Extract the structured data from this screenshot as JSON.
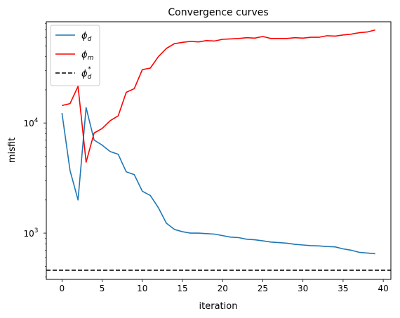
{
  "chart_data": {
    "type": "line",
    "title": "Convergence curves",
    "xlabel": "iteration",
    "ylabel": "misfit",
    "xlim": [
      -1.95,
      40.95
    ],
    "ylim": [
      380,
      83000
    ],
    "yscale": "log",
    "grid": false,
    "legend_position": "top-left",
    "x_ticks": [
      0,
      5,
      10,
      15,
      20,
      25,
      30,
      35,
      40
    ],
    "x_tick_labels": [
      "0",
      "5",
      "10",
      "15",
      "20",
      "25",
      "30",
      "35",
      "40"
    ],
    "y_ticks": [
      1000,
      10000
    ],
    "y_tick_labels": [
      {
        "base": "10",
        "exp": "3"
      },
      {
        "base": "10",
        "exp": "4"
      }
    ],
    "y_minor_ticks": [
      400,
      500,
      600,
      700,
      800,
      900,
      2000,
      3000,
      4000,
      5000,
      6000,
      7000,
      8000,
      9000,
      20000,
      30000,
      40000,
      50000,
      60000,
      70000,
      80000
    ],
    "x": [
      0,
      1,
      2,
      3,
      4,
      5,
      6,
      7,
      8,
      9,
      10,
      11,
      12,
      13,
      14,
      15,
      16,
      17,
      18,
      19,
      20,
      21,
      22,
      23,
      24,
      25,
      26,
      27,
      28,
      29,
      30,
      31,
      32,
      33,
      34,
      35,
      36,
      37,
      38,
      39
    ],
    "series": [
      {
        "name": "φd",
        "legend_base": "ϕ",
        "legend_sub": "d",
        "color": "#1f77b4",
        "style": "solid",
        "values": [
          12300,
          3700,
          2000,
          13800,
          7000,
          6300,
          5500,
          5200,
          3600,
          3400,
          2400,
          2200,
          1700,
          1230,
          1080,
          1030,
          1000,
          1000,
          990,
          980,
          950,
          920,
          910,
          880,
          870,
          850,
          830,
          820,
          810,
          790,
          780,
          770,
          765,
          755,
          750,
          720,
          700,
          670,
          660,
          650
        ]
      },
      {
        "name": "φm",
        "legend_base": "ϕ",
        "legend_sub": "m",
        "color": "#ff0000",
        "style": "solid",
        "values": [
          14400,
          15000,
          21500,
          4400,
          8100,
          8900,
          10500,
          11600,
          19000,
          20500,
          30500,
          31500,
          40000,
          47500,
          52500,
          54000,
          55000,
          54500,
          56000,
          55500,
          57500,
          58000,
          58500,
          59500,
          59000,
          61000,
          58500,
          58500,
          58500,
          59500,
          59000,
          60000,
          60000,
          62000,
          61500,
          63000,
          64000,
          66000,
          67000,
          70000
        ]
      },
      {
        "name": "φd*",
        "legend_base": "ϕ",
        "legend_sub": "d",
        "legend_sup": "*",
        "color": "#000000",
        "style": "dashed",
        "constant": 460
      }
    ]
  }
}
